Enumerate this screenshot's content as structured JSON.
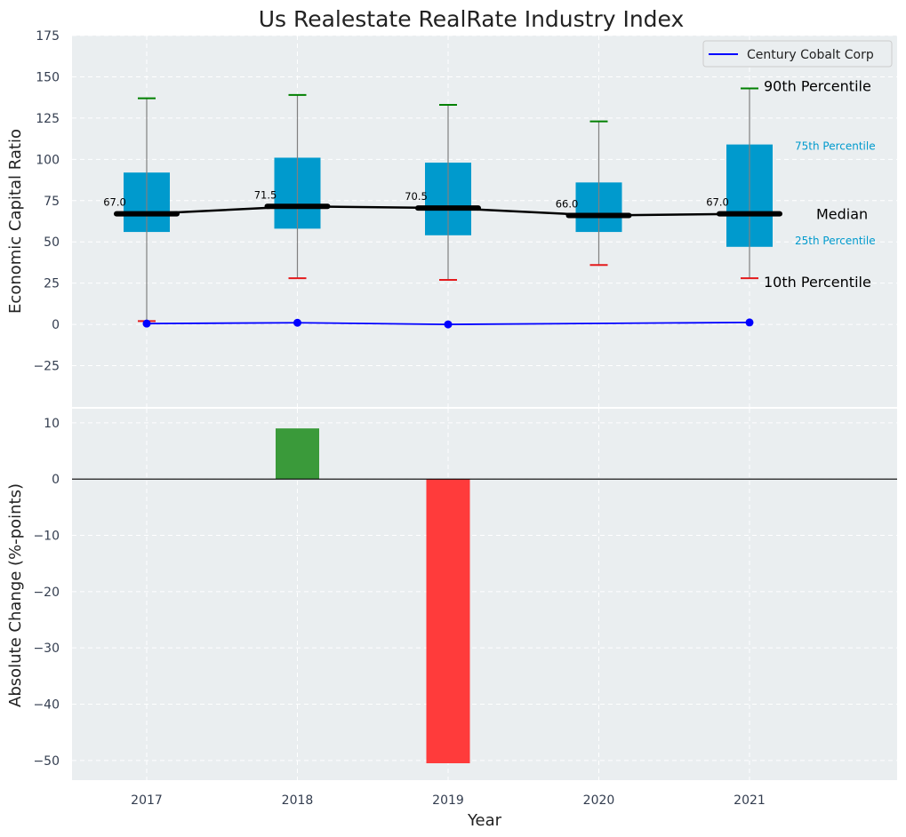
{
  "chart_data": [
    {
      "type": "box",
      "title": "Us Realestate RealRate Industry Index",
      "ylabel": "Economic Capital Ratio",
      "ylim": [
        -50,
        175
      ],
      "yticks": [
        -25,
        0,
        25,
        50,
        75,
        100,
        125,
        150,
        175
      ],
      "ytick_labels": [
        "−25",
        "0",
        "25",
        "50",
        "75",
        "100",
        "125",
        "150",
        "175"
      ],
      "grid": true,
      "categories": [
        "2017",
        "2018",
        "2019",
        "2020",
        "2021"
      ],
      "percentiles": {
        "p10": [
          2,
          28,
          27,
          36,
          28
        ],
        "p25": [
          56,
          58,
          54,
          56,
          47
        ],
        "median": [
          67.0,
          71.5,
          70.5,
          66.0,
          67.0
        ],
        "p75": [
          92,
          101,
          98,
          86,
          109
        ],
        "p90": [
          137,
          139,
          133,
          123,
          143
        ]
      },
      "median_labels": [
        "67.0",
        "71.5",
        "70.5",
        "66.0",
        "67.0"
      ],
      "series": [
        {
          "name": "Century Cobalt Corp",
          "x": [
            "2017",
            "2018",
            "2019",
            "2021"
          ],
          "values": [
            0.5,
            1.0,
            0.0,
            1.2
          ]
        }
      ],
      "legend": {
        "position": "top-right"
      },
      "annotations": {
        "p90": "90th Percentile",
        "p75": "75th Percentile",
        "median": "Median",
        "p25": "25th Percentile",
        "p10": "10th Percentile"
      },
      "colors": {
        "box": "#009acd",
        "median": "#000000",
        "p90_cap": "#008000",
        "p10_cap": "#e41a1c",
        "company": "#0000ff",
        "whisker": "#808080",
        "annotation_blue": "#009acd",
        "background": "#eaeef0"
      }
    },
    {
      "type": "bar",
      "xlabel": "Year",
      "ylabel": "Absolute Change (%-points)",
      "ylim": [
        -53.5,
        12.5
      ],
      "yticks": [
        -50,
        -40,
        -30,
        -20,
        -10,
        0,
        10
      ],
      "ytick_labels": [
        "−50",
        "−40",
        "−30",
        "−20",
        "−10",
        "0",
        "10"
      ],
      "grid": true,
      "categories": [
        "2017",
        "2018",
        "2019",
        "2020",
        "2021"
      ],
      "values": [
        0,
        9.0,
        -50.5,
        0,
        0
      ],
      "colors": {
        "positive": "#3a9a3a",
        "negative": "#ff3b3b",
        "background": "#eaeef0",
        "zero_line": "#000000"
      }
    }
  ]
}
